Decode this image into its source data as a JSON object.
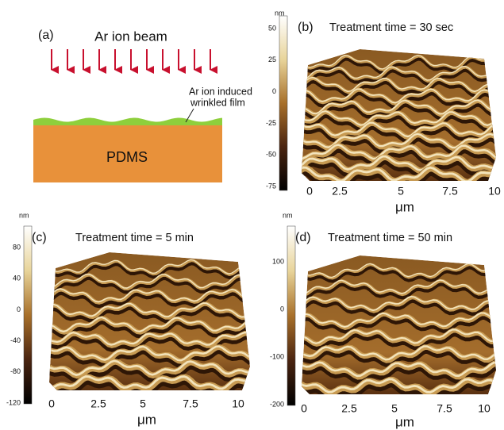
{
  "panel_a": {
    "label": "(a)",
    "beam_label": "Ar ion beam",
    "film_label": [
      "Ar ion induced",
      "wrinkled film"
    ],
    "substrate_label": "PDMS"
  },
  "panels": [
    {
      "label": "(b)",
      "title": "Treatment time = 30 sec",
      "colorbar_unit": "nm",
      "colorbar_ticks": [
        "50",
        "25",
        "0",
        "-25",
        "-50",
        "-75"
      ],
      "x_ticks": [
        "0",
        "2.5",
        "5",
        "7.5",
        "10"
      ],
      "x_unit": "μm"
    },
    {
      "label": "(c)",
      "title": "Treatment time = 5 min",
      "colorbar_unit": "nm",
      "colorbar_ticks": [
        "80",
        "40",
        "0",
        "-40",
        "-80",
        "-120"
      ],
      "x_ticks": [
        "0",
        "2.5",
        "5",
        "7.5",
        "10"
      ],
      "x_unit": "μm"
    },
    {
      "label": "(d)",
      "title": "Treatment time = 50 min",
      "colorbar_unit": "nm",
      "colorbar_ticks": [
        "100",
        "0",
        "-100",
        "-200"
      ],
      "x_ticks": [
        "0",
        "2.5",
        "5",
        "7.5",
        "10"
      ],
      "x_unit": "μm"
    }
  ]
}
